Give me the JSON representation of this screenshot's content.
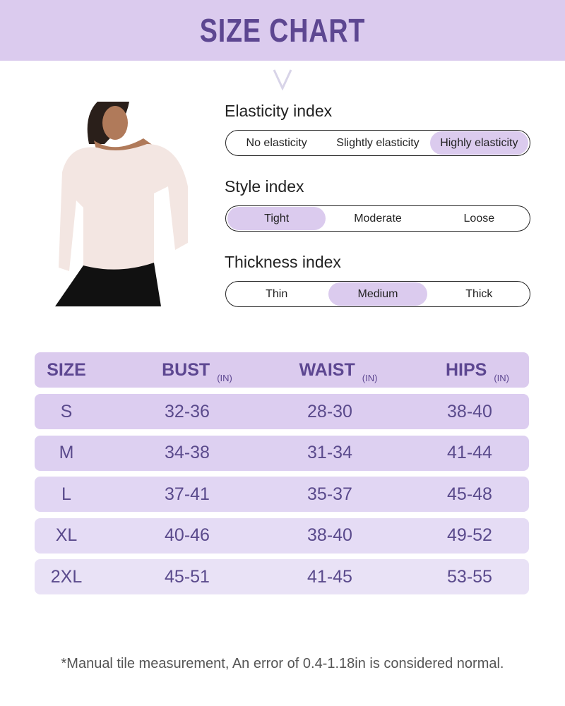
{
  "title": "SIZE CHART",
  "indices": [
    {
      "label": "Elasticity index",
      "options": [
        "No elasticity",
        "Slightly elasticity",
        "Highly elasticity"
      ],
      "selected": 2
    },
    {
      "label": "Style index",
      "options": [
        "Tight",
        "Moderate",
        "Loose"
      ],
      "selected": 0
    },
    {
      "label": "Thickness index",
      "options": [
        "Thin",
        "Medium",
        "Thick"
      ],
      "selected": 1
    }
  ],
  "table": {
    "headers": [
      {
        "label": "SIZE",
        "unit": ""
      },
      {
        "label": "BUST",
        "unit": "(IN)"
      },
      {
        "label": "WAIST",
        "unit": "(IN)"
      },
      {
        "label": "HIPS",
        "unit": "(IN)"
      }
    ],
    "rows": [
      [
        "S",
        "32-36",
        "28-30",
        "38-40"
      ],
      [
        "M",
        "34-38",
        "31-34",
        "41-44"
      ],
      [
        "L",
        "37-41",
        "35-37",
        "45-48"
      ],
      [
        "XL",
        "40-46",
        "38-40",
        "49-52"
      ],
      [
        "2XL",
        "45-51",
        "41-45",
        "53-55"
      ]
    ]
  },
  "note": "*Manual tile measurement, An error of 0.4-1.18in is considered normal.",
  "colors": {
    "accent": "#dbcbee",
    "title": "#5d4791",
    "text": "#5a4a8c"
  }
}
